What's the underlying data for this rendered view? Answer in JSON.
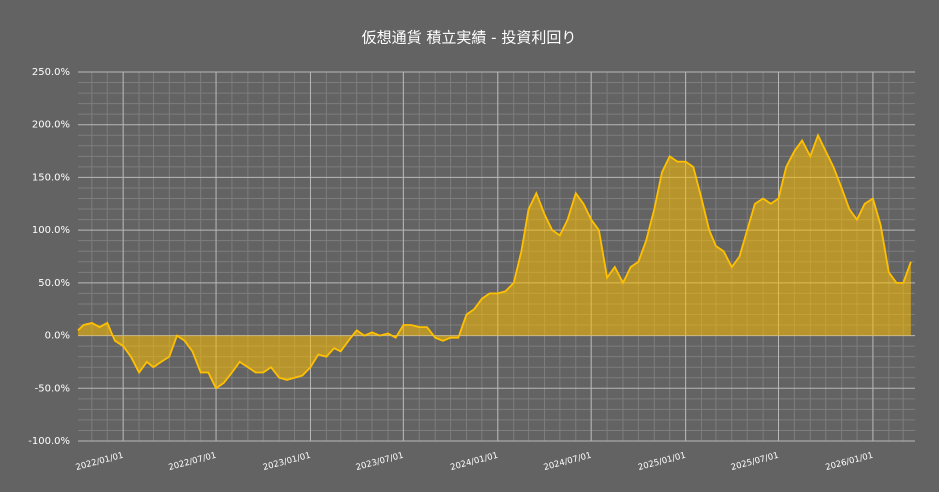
{
  "chart_data": {
    "type": "area",
    "title": "仮想通貨 積立実績 - 投資利回り",
    "x": [
      "2021/10/05",
      "2021/10/16",
      "2021/11/01",
      "2021/11/16",
      "2021/12/01",
      "2021/12/16",
      "2022/01/01",
      "2022/01/16",
      "2022/02/01",
      "2022/02/16",
      "2022/03/01",
      "2022/03/16",
      "2022/04/01",
      "2022/04/16",
      "2022/05/01",
      "2022/05/16",
      "2022/06/01",
      "2022/06/16",
      "2022/07/01",
      "2022/07/16",
      "2022/08/01",
      "2022/08/16",
      "2022/09/01",
      "2022/09/16",
      "2022/10/01",
      "2022/10/16",
      "2022/11/01",
      "2022/11/16",
      "2022/12/01",
      "2022/12/16",
      "2023/01/01",
      "2023/01/16",
      "2023/02/01",
      "2023/02/16",
      "2023/03/01",
      "2023/03/16",
      "2023/04/01",
      "2023/04/16",
      "2023/05/01",
      "2023/05/16",
      "2023/06/01",
      "2023/06/16",
      "2023/07/01",
      "2023/07/16",
      "2023/08/01",
      "2023/08/16",
      "2023/09/01",
      "2023/09/16",
      "2023/10/01",
      "2023/10/16",
      "2023/11/01",
      "2023/11/16",
      "2023/12/01",
      "2023/12/16",
      "2024/01/01",
      "2024/01/16",
      "2024/02/01",
      "2024/02/16",
      "2024/03/01",
      "2024/03/16",
      "2024/04/01",
      "2024/04/16",
      "2024/05/01",
      "2024/05/16",
      "2024/06/01",
      "2024/06/16",
      "2024/07/01",
      "2024/07/16",
      "2024/08/01",
      "2024/08/16",
      "2024/09/01",
      "2024/09/16",
      "2024/10/01",
      "2024/10/16",
      "2024/11/01",
      "2024/11/16",
      "2024/12/01",
      "2024/12/16",
      "2025/01/01",
      "2025/01/16",
      "2025/02/01",
      "2025/02/16",
      "2025/03/01",
      "2025/03/16",
      "2025/04/01",
      "2025/04/16",
      "2025/05/01",
      "2025/05/16",
      "2025/06/01",
      "2025/06/16",
      "2025/07/01",
      "2025/07/16",
      "2025/08/01",
      "2025/08/16",
      "2025/09/01",
      "2025/09/16",
      "2025/10/01",
      "2025/10/16",
      "2025/11/01",
      "2025/11/16",
      "2025/12/01",
      "2025/12/16",
      "2026/01/01",
      "2026/01/16",
      "2026/02/01",
      "2026/02/16",
      "2026/03/01",
      "2026/03/16"
    ],
    "values": [
      5,
      10,
      12,
      8,
      12,
      -5,
      -10,
      -20,
      -35,
      -25,
      -30,
      -25,
      -20,
      0,
      -5,
      -15,
      -35,
      -35,
      -50,
      -45,
      -35,
      -25,
      -30,
      -35,
      -35,
      -30,
      -40,
      -42,
      -40,
      -38,
      -30,
      -18,
      -20,
      -12,
      -15,
      -5,
      5,
      0,
      3,
      0,
      2,
      -2,
      10,
      10,
      8,
      8,
      -2,
      -5,
      -2,
      -2,
      20,
      25,
      35,
      40,
      40,
      42,
      50,
      80,
      120,
      135,
      115,
      100,
      95,
      110,
      135,
      125,
      110,
      100,
      55,
      65,
      50,
      65,
      70,
      90,
      120,
      155,
      170,
      165,
      165,
      160,
      130,
      100,
      85,
      80,
      65,
      75,
      100,
      125,
      130,
      125,
      130,
      160,
      175,
      185,
      170,
      190,
      175,
      160,
      140,
      120,
      110,
      125,
      130,
      105,
      60,
      50,
      50,
      70
    ],
    "color": "#ffc000",
    "xlim": [
      "2021/10/05",
      "2026/03/24"
    ],
    "xticks": [
      "2022/01/01",
      "2022/07/01",
      "2023/01/01",
      "2023/07/01",
      "2024/01/01",
      "2024/07/01",
      "2025/01/01",
      "2025/07/01",
      "2026/01/01"
    ],
    "ylim": [
      -100,
      250
    ],
    "yticks": [
      {
        "value": -100,
        "label": "-100.0%"
      },
      {
        "value": -50,
        "label": "-50.0%"
      },
      {
        "value": 0,
        "label": "0.0%"
      },
      {
        "value": 50,
        "label": "50.0%"
      },
      {
        "value": 100,
        "label": "100.0%"
      },
      {
        "value": 150,
        "label": "150.0%"
      },
      {
        "value": 200,
        "label": "200.0%"
      },
      {
        "value": 250,
        "label": "250.0%"
      }
    ],
    "grid": true
  }
}
